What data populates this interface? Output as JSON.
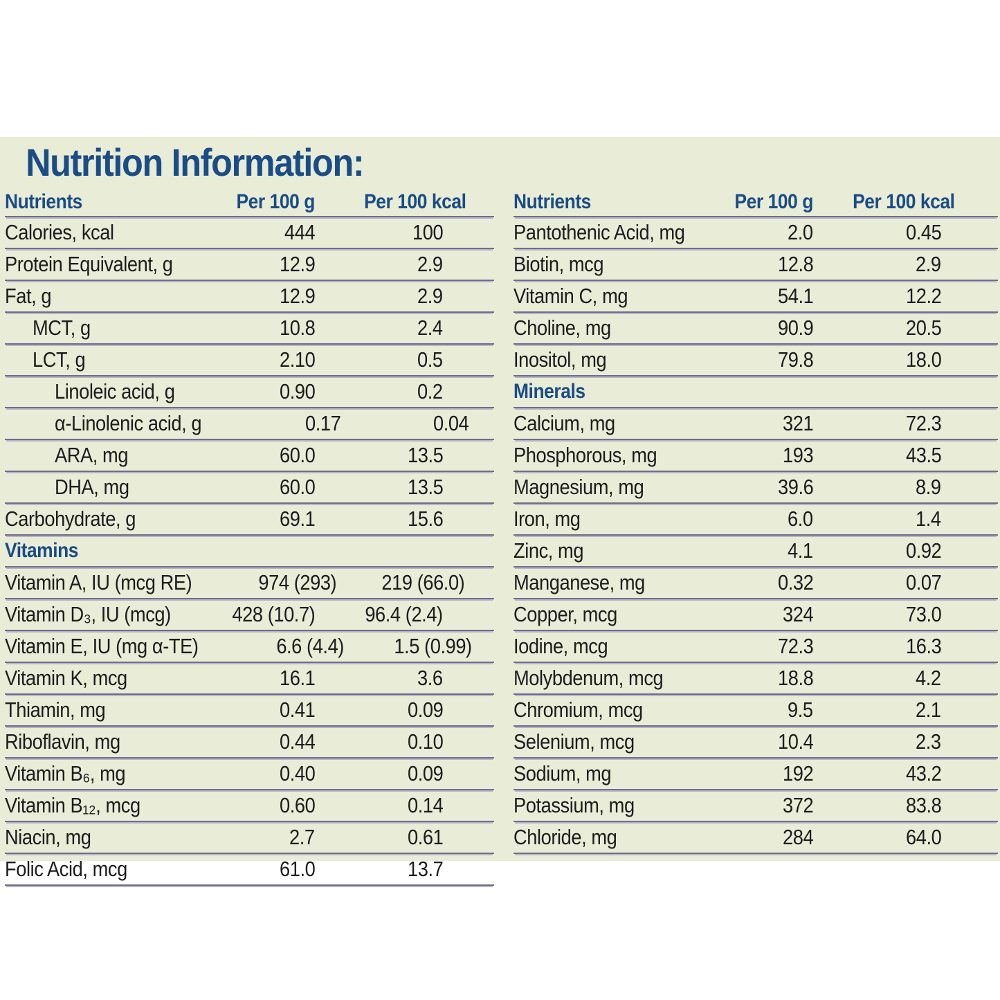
{
  "title": "Nutrition Information:",
  "colors": {
    "panel_background": "#e9ecd7",
    "heading_blue": "#1a4c86",
    "body_text": "#1c1c1c",
    "divider_dark": "#6f6e8a",
    "divider_light": "#b6b5c8"
  },
  "tables": [
    {
      "headers": [
        "Nutrients",
        "Per 100 g",
        "Per 100 kcal"
      ],
      "rows": [
        {
          "label": "Calories, kcal",
          "indent": 0,
          "per_100_g": "444",
          "per_100_kcal": "100"
        },
        {
          "label": "Protein Equivalent, g",
          "indent": 0,
          "per_100_g": "12.9",
          "per_100_kcal": "2.9"
        },
        {
          "label": "Fat, g",
          "indent": 0,
          "per_100_g": "12.9",
          "per_100_kcal": "2.9"
        },
        {
          "label": "MCT, g",
          "indent": 1,
          "per_100_g": "10.8",
          "per_100_kcal": "2.4"
        },
        {
          "label": "LCT, g",
          "indent": 1,
          "per_100_g": "2.10",
          "per_100_kcal": "0.5"
        },
        {
          "label": "Linoleic acid, g",
          "indent": 2,
          "per_100_g": "0.90",
          "per_100_kcal": "0.2"
        },
        {
          "label": "α-Linolenic acid, g",
          "indent": 2,
          "per_100_g": "0.17",
          "per_100_kcal": "0.04"
        },
        {
          "label": "ARA, mg",
          "indent": 2,
          "per_100_g": "60.0",
          "per_100_kcal": "13.5"
        },
        {
          "label": "DHA, mg",
          "indent": 2,
          "per_100_g": "60.0",
          "per_100_kcal": "13.5"
        },
        {
          "label": "Carbohydrate, g",
          "indent": 0,
          "per_100_g": "69.1",
          "per_100_kcal": "15.6"
        },
        {
          "section": "Vitamins"
        },
        {
          "label": "Vitamin A, IU (mcg RE)",
          "indent": 0,
          "per_100_g": "974 (293)",
          "per_100_kcal": "219 (66.0)"
        },
        {
          "label": "Vitamin D₃, IU (mcg)",
          "indent": 0,
          "per_100_g": "428 (10.7)",
          "per_100_kcal": "96.4 (2.4)"
        },
        {
          "label": "Vitamin E, IU (mg α-TE)",
          "indent": 0,
          "per_100_g": "6.6 (4.4)",
          "per_100_kcal": "1.5 (0.99)"
        },
        {
          "label": "Vitamin K, mcg",
          "indent": 0,
          "per_100_g": "16.1",
          "per_100_kcal": "3.6"
        },
        {
          "label": "Thiamin, mg",
          "indent": 0,
          "per_100_g": "0.41",
          "per_100_kcal": "0.09"
        },
        {
          "label": "Riboflavin, mg",
          "indent": 0,
          "per_100_g": "0.44",
          "per_100_kcal": "0.10"
        },
        {
          "label": "Vitamin B₆, mg",
          "indent": 0,
          "per_100_g": "0.40",
          "per_100_kcal": "0.09"
        },
        {
          "label": "Vitamin B₁₂, mcg",
          "indent": 0,
          "per_100_g": "0.60",
          "per_100_kcal": "0.14"
        },
        {
          "label": "Niacin, mg",
          "indent": 0,
          "per_100_g": "2.7",
          "per_100_kcal": "0.61"
        },
        {
          "label": "Folic Acid, mcg",
          "indent": 0,
          "per_100_g": "61.0",
          "per_100_kcal": "13.7"
        }
      ]
    },
    {
      "headers": [
        "Nutrients",
        "Per 100 g",
        "Per 100 kcal"
      ],
      "rows": [
        {
          "label": "Pantothenic Acid, mg",
          "indent": 0,
          "per_100_g": "2.0",
          "per_100_kcal": "0.45"
        },
        {
          "label": "Biotin, mcg",
          "indent": 0,
          "per_100_g": "12.8",
          "per_100_kcal": "2.9"
        },
        {
          "label": "Vitamin C, mg",
          "indent": 0,
          "per_100_g": "54.1",
          "per_100_kcal": "12.2"
        },
        {
          "label": "Choline, mg",
          "indent": 0,
          "per_100_g": "90.9",
          "per_100_kcal": "20.5"
        },
        {
          "label": "Inositol, mg",
          "indent": 0,
          "per_100_g": "79.8",
          "per_100_kcal": "18.0"
        },
        {
          "section": "Minerals"
        },
        {
          "label": "Calcium, mg",
          "indent": 0,
          "per_100_g": "321",
          "per_100_kcal": "72.3"
        },
        {
          "label": "Phosphorous, mg",
          "indent": 0,
          "per_100_g": "193",
          "per_100_kcal": "43.5"
        },
        {
          "label": "Magnesium, mg",
          "indent": 0,
          "per_100_g": "39.6",
          "per_100_kcal": "8.9"
        },
        {
          "label": "Iron, mg",
          "indent": 0,
          "per_100_g": "6.0",
          "per_100_kcal": "1.4"
        },
        {
          "label": "Zinc, mg",
          "indent": 0,
          "per_100_g": "4.1",
          "per_100_kcal": "0.92"
        },
        {
          "label": "Manganese, mg",
          "indent": 0,
          "per_100_g": "0.32",
          "per_100_kcal": "0.07"
        },
        {
          "label": "Copper, mcg",
          "indent": 0,
          "per_100_g": "324",
          "per_100_kcal": "73.0"
        },
        {
          "label": "Iodine, mcg",
          "indent": 0,
          "per_100_g": "72.3",
          "per_100_kcal": "16.3"
        },
        {
          "label": "Molybdenum, mcg",
          "indent": 0,
          "per_100_g": "18.8",
          "per_100_kcal": "4.2"
        },
        {
          "label": "Chromium, mcg",
          "indent": 0,
          "per_100_g": "9.5",
          "per_100_kcal": "2.1"
        },
        {
          "label": "Selenium, mcg",
          "indent": 0,
          "per_100_g": "10.4",
          "per_100_kcal": "2.3"
        },
        {
          "label": "Sodium, mg",
          "indent": 0,
          "per_100_g": "192",
          "per_100_kcal": "43.2"
        },
        {
          "label": "Potassium, mg",
          "indent": 0,
          "per_100_g": "372",
          "per_100_kcal": "83.8"
        },
        {
          "label": "Chloride, mg",
          "indent": 0,
          "per_100_g": "284",
          "per_100_kcal": "64.0"
        }
      ]
    }
  ]
}
